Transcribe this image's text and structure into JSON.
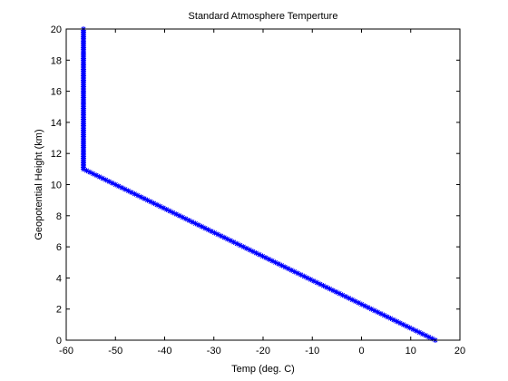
{
  "chart_data": {
    "type": "line",
    "title": "Standard Atmosphere Temperture",
    "xlabel": "Temp (deg. C)",
    "ylabel": "Geopotential Height (km)",
    "xlim": [
      -60,
      20
    ],
    "ylim": [
      0,
      20
    ],
    "xticks": [
      -60,
      -50,
      -40,
      -30,
      -20,
      -10,
      0,
      10,
      20
    ],
    "yticks": [
      0,
      2,
      4,
      6,
      8,
      10,
      12,
      14,
      16,
      18,
      20
    ],
    "grid": false,
    "legend": "none",
    "marker": "asterisk",
    "series": [
      {
        "color": "#0000ff",
        "points": [
          {
            "x": 15,
            "y": 0
          },
          {
            "x": -56.5,
            "y": 11
          },
          {
            "x": -56.5,
            "y": 20
          }
        ],
        "sample_step_km": 0.1
      }
    ]
  }
}
